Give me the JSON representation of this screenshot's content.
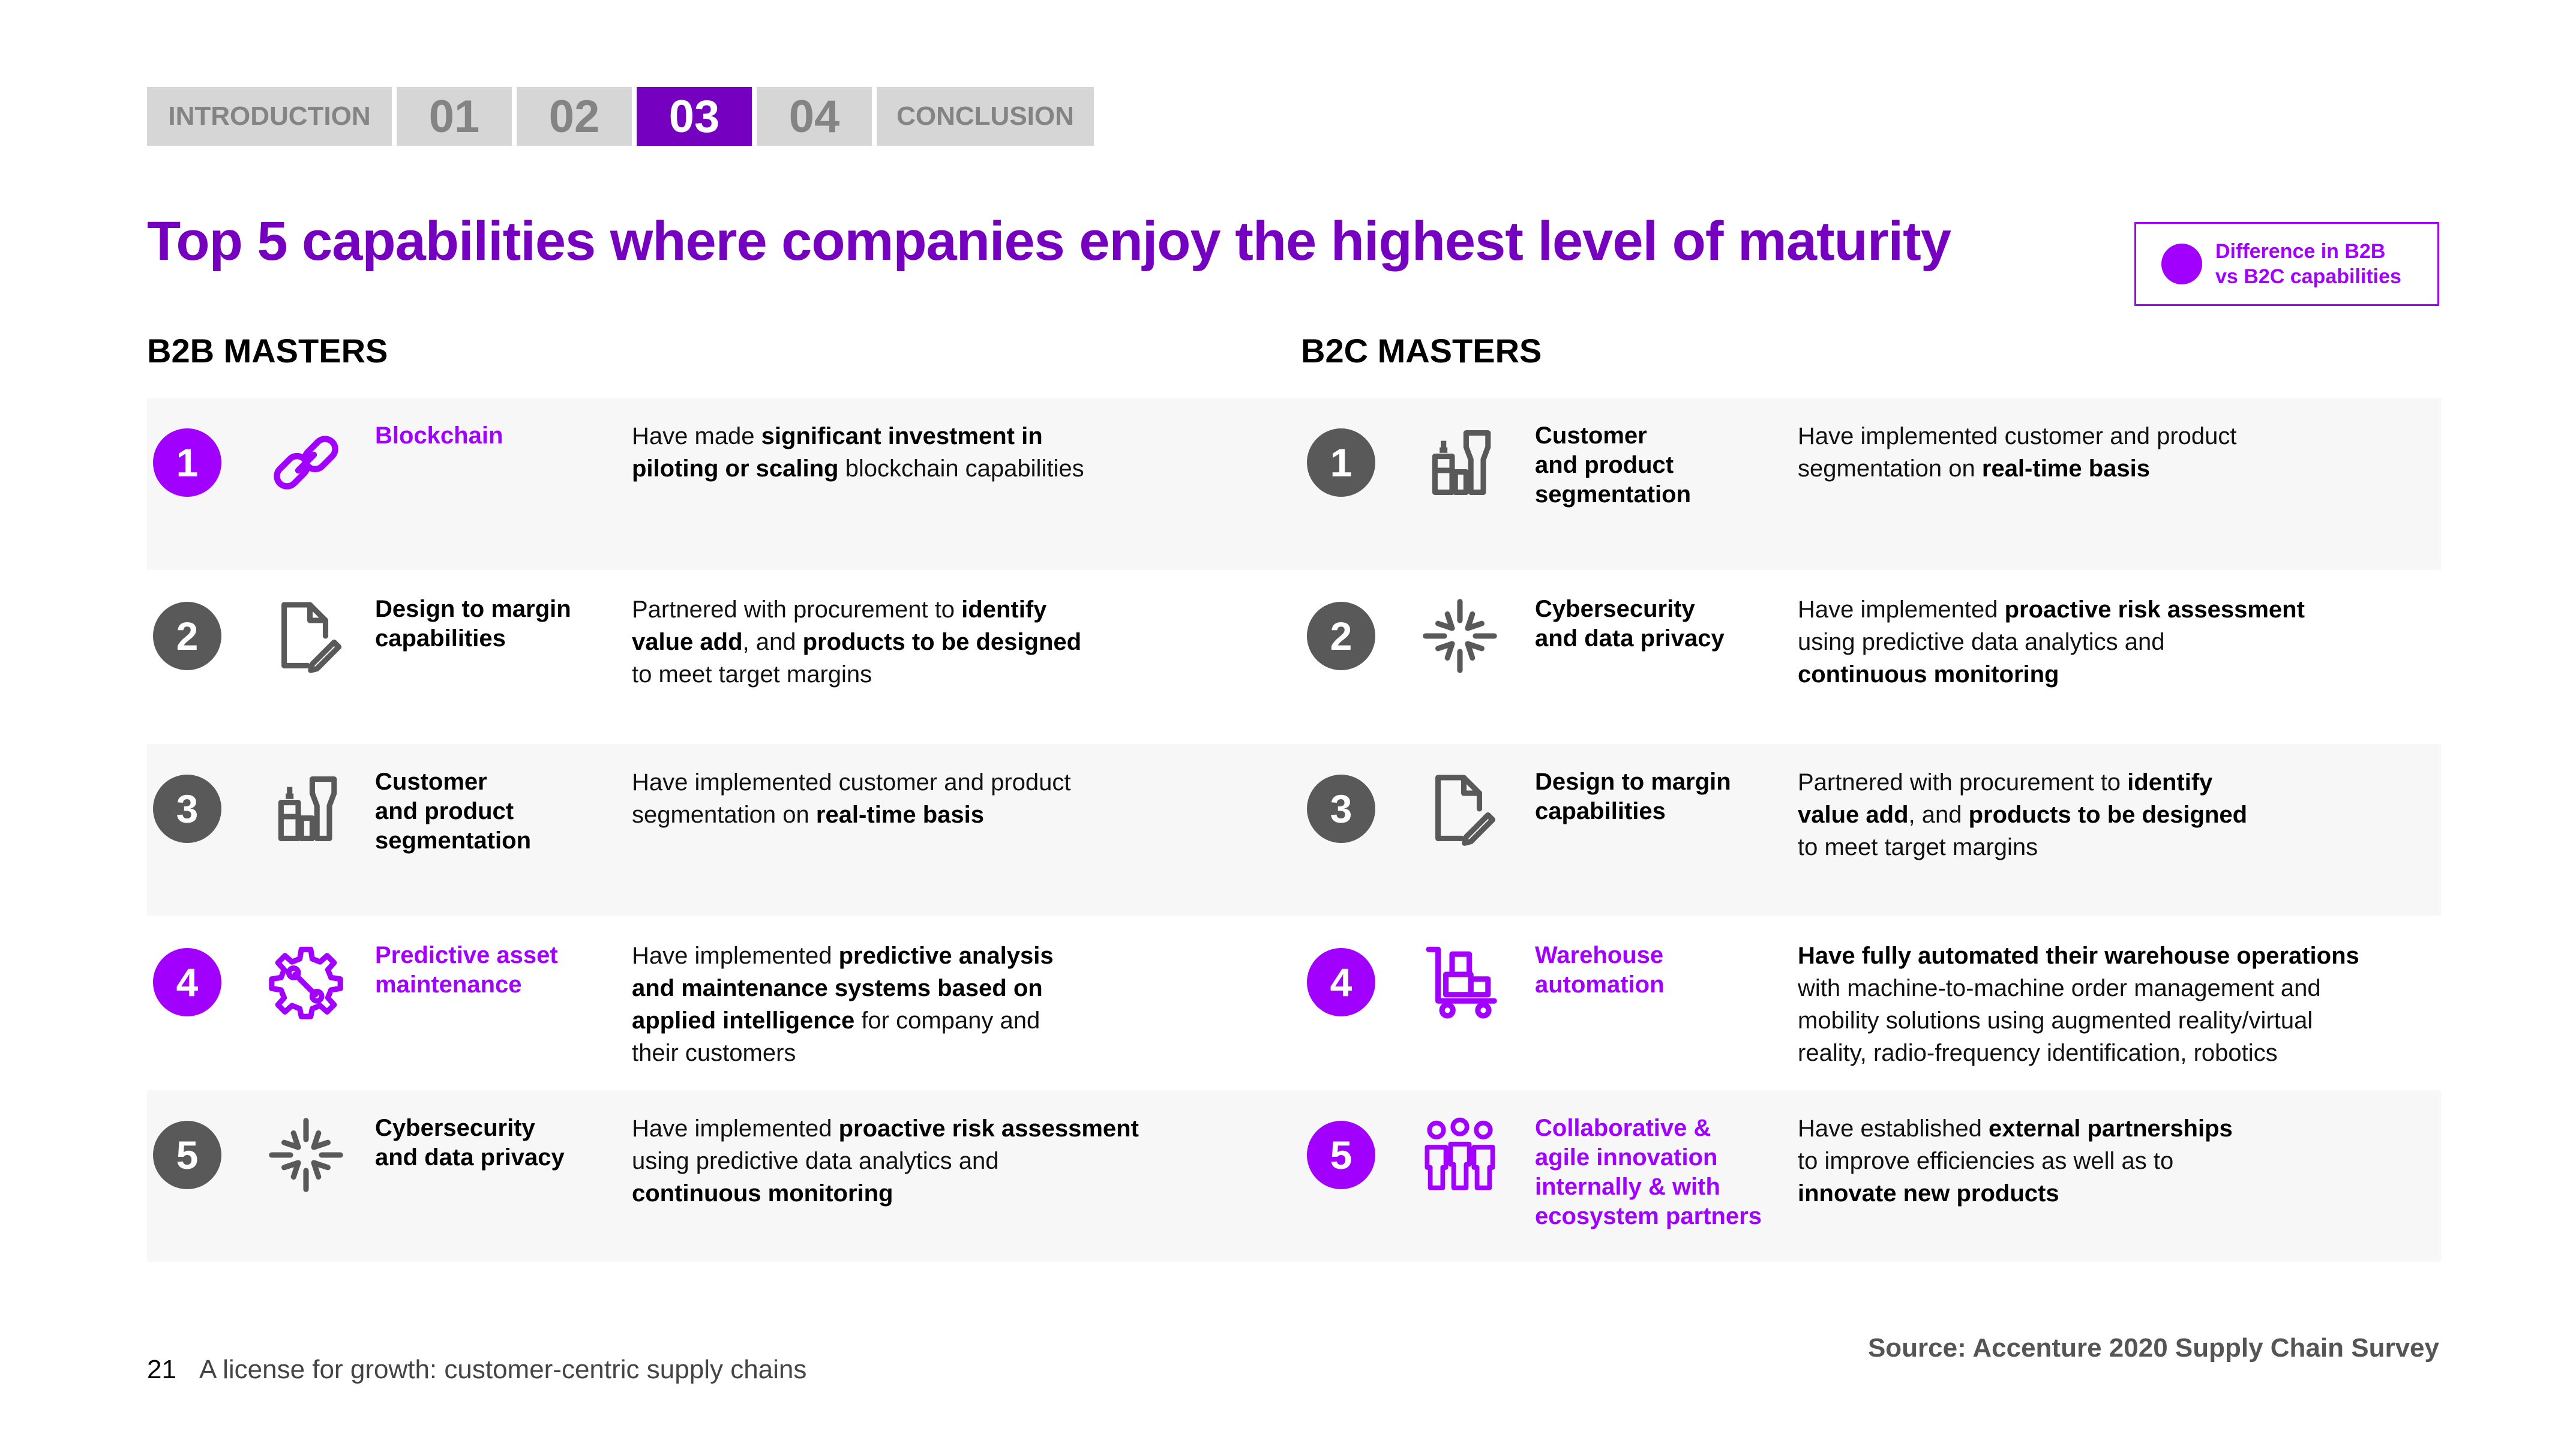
{
  "nav": {
    "tabs": [
      {
        "label": "INTRODUCTION",
        "active": false
      },
      {
        "label": "01",
        "active": false
      },
      {
        "label": "02",
        "active": false
      },
      {
        "label": "03",
        "active": true
      },
      {
        "label": "04",
        "active": false
      },
      {
        "label": "CONCLUSION",
        "active": false
      }
    ]
  },
  "title": "Top 5 capabilities where companies enjoy the highest level of maturity",
  "legend": {
    "line1": "Difference in B2B",
    "line2": "vs B2C capabilities",
    "color": "#a100ff"
  },
  "colors": {
    "accent": "#a100ff",
    "title": "#7500c0",
    "badge_default": "#595959"
  },
  "b2b": {
    "heading": "B2B MASTERS",
    "items": [
      {
        "rank": "1",
        "icon": "chain-link-icon",
        "highlight": true,
        "capability": [
          "Blockchain"
        ],
        "description": [
          [
            {
              "t": "Have made ",
              "b": false
            },
            {
              "t": "significant investment in",
              "b": true
            }
          ],
          [
            {
              "t": "piloting or scaling",
              "b": true
            },
            {
              "t": " blockchain capabilities",
              "b": false
            }
          ]
        ]
      },
      {
        "rank": "2",
        "icon": "document-edit-icon",
        "highlight": false,
        "capability": [
          "Design to margin",
          "capabilities"
        ],
        "description": [
          [
            {
              "t": "Partnered with procurement to ",
              "b": false
            },
            {
              "t": "identify",
              "b": true
            }
          ],
          [
            {
              "t": "value add",
              "b": true
            },
            {
              "t": ", and ",
              "b": false
            },
            {
              "t": "products to be designed",
              "b": true
            }
          ],
          [
            {
              "t": "to meet target margins",
              "b": false
            }
          ]
        ]
      },
      {
        "rank": "3",
        "icon": "products-icon",
        "highlight": false,
        "capability": [
          "Customer",
          "and product",
          "segmentation"
        ],
        "description": [
          [
            {
              "t": "Have implemented customer and product",
              "b": false
            }
          ],
          [
            {
              "t": "segmentation on ",
              "b": false
            },
            {
              "t": "real-time basis",
              "b": true
            }
          ]
        ]
      },
      {
        "rank": "4",
        "icon": "gear-wrench-icon",
        "highlight": true,
        "capability": [
          "Predictive asset",
          "maintenance"
        ],
        "description": [
          [
            {
              "t": "Have implemented ",
              "b": false
            },
            {
              "t": "predictive analysis",
              "b": true
            }
          ],
          [
            {
              "t": "and maintenance systems based on",
              "b": true
            }
          ],
          [
            {
              "t": "applied intelligence",
              "b": true
            },
            {
              "t": " for company and",
              "b": false
            }
          ],
          [
            {
              "t": "their customers",
              "b": false
            }
          ]
        ]
      },
      {
        "rank": "5",
        "icon": "cybersecurity-icon",
        "highlight": false,
        "capability": [
          "Cybersecurity",
          "and data privacy"
        ],
        "description": [
          [
            {
              "t": "Have implemented ",
              "b": false
            },
            {
              "t": "proactive risk assessment",
              "b": true
            }
          ],
          [
            {
              "t": "using predictive data analytics and",
              "b": false
            }
          ],
          [
            {
              "t": "continuous monitoring",
              "b": true
            }
          ]
        ]
      }
    ]
  },
  "b2c": {
    "heading": "B2C MASTERS",
    "items": [
      {
        "rank": "1",
        "icon": "products-icon",
        "highlight": false,
        "capability": [
          "Customer",
          "and product",
          "segmentation"
        ],
        "description": [
          [
            {
              "t": "Have implemented customer and product",
              "b": false
            }
          ],
          [
            {
              "t": "segmentation on ",
              "b": false
            },
            {
              "t": "real-time basis",
              "b": true
            }
          ]
        ]
      },
      {
        "rank": "2",
        "icon": "cybersecurity-icon",
        "highlight": false,
        "capability": [
          "Cybersecurity",
          "and data privacy"
        ],
        "description": [
          [
            {
              "t": "Have implemented ",
              "b": false
            },
            {
              "t": "proactive risk assessment",
              "b": true
            }
          ],
          [
            {
              "t": "using predictive data analytics and",
              "b": false
            }
          ],
          [
            {
              "t": "continuous monitoring",
              "b": true
            }
          ]
        ]
      },
      {
        "rank": "3",
        "icon": "document-edit-icon",
        "highlight": false,
        "capability": [
          "Design to margin",
          "capabilities"
        ],
        "description": [
          [
            {
              "t": "Partnered with procurement to ",
              "b": false
            },
            {
              "t": "identify",
              "b": true
            }
          ],
          [
            {
              "t": "value add",
              "b": true
            },
            {
              "t": ", and ",
              "b": false
            },
            {
              "t": "products to be designed",
              "b": true
            }
          ],
          [
            {
              "t": "to meet target margins",
              "b": false
            }
          ]
        ]
      },
      {
        "rank": "4",
        "icon": "warehouse-trolley-icon",
        "highlight": true,
        "capability": [
          "Warehouse",
          "automation"
        ],
        "description": [
          [
            {
              "t": "Have fully automated their warehouse operations",
              "b": true
            }
          ],
          [
            {
              "t": "with machine-to-machine order management and",
              "b": false
            }
          ],
          [
            {
              "t": "mobility solutions using augmented reality/virtual",
              "b": false
            }
          ],
          [
            {
              "t": "reality, radio-frequency identification, robotics",
              "b": false
            }
          ]
        ]
      },
      {
        "rank": "5",
        "icon": "team-collaboration-icon",
        "highlight": true,
        "capability": [
          "Collaborative &",
          "agile innovation",
          "internally & with",
          "ecosystem partners"
        ],
        "description": [
          [
            {
              "t": "Have established ",
              "b": false
            },
            {
              "t": "external partnerships",
              "b": true
            }
          ],
          [
            {
              "t": "to improve efficiencies as well as to",
              "b": false
            }
          ],
          [
            {
              "t": "innovate new products",
              "b": true
            }
          ]
        ]
      }
    ]
  },
  "source": "Source: Accenture 2020 Supply Chain Survey",
  "footer": {
    "page": "21",
    "text": "A license for growth: customer-centric supply chains"
  }
}
